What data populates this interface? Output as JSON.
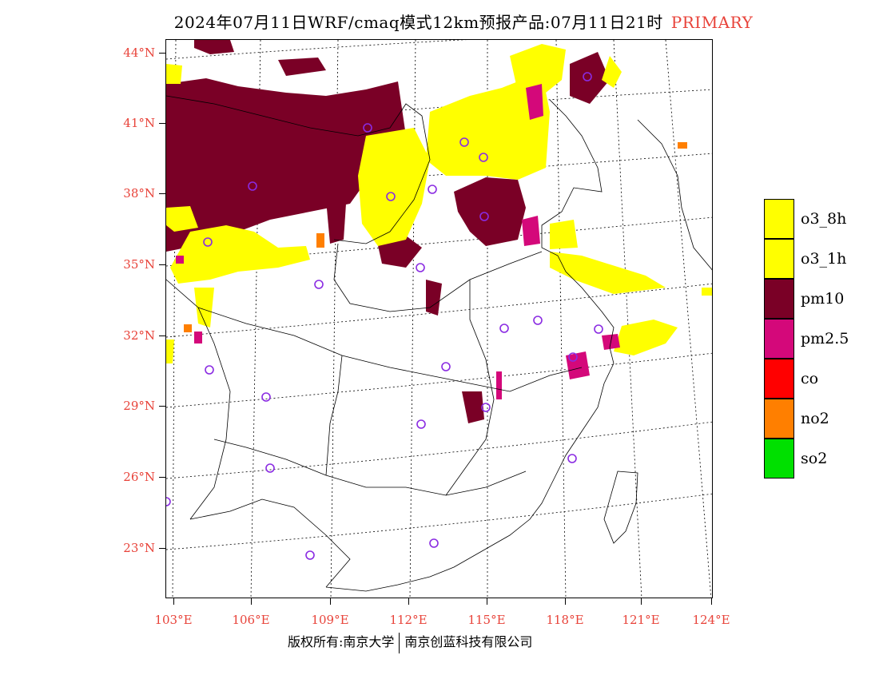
{
  "title": {
    "main": "2024年07月11日WRF/cmaq模式12km预报产品:07月11日21时",
    "tag": "PRIMARY"
  },
  "map": {
    "lat_ticks": [
      "44°N",
      "41°N",
      "38°N",
      "35°N",
      "32°N",
      "29°N",
      "26°N",
      "23°N"
    ],
    "lon_ticks": [
      "103°E",
      "106°E",
      "109°E",
      "112°E",
      "115°E",
      "118°E",
      "121°E",
      "124°E"
    ],
    "colors": {
      "o3_8h": "#ffff00",
      "o3_1h": "#ffff00",
      "pm10": "#7a0026",
      "pm25": "#d4087a",
      "co": "#ff0000",
      "no2": "#ff7f00",
      "so2": "#00e000",
      "station": "#8a2be2",
      "label": "#e8433a"
    }
  },
  "legend": [
    {
      "label": "o3_8h",
      "color": "#ffff00"
    },
    {
      "label": "o3_1h",
      "color": "#ffff00"
    },
    {
      "label": "pm10",
      "color": "#7a0026"
    },
    {
      "label": "pm2.5",
      "color": "#d4087a"
    },
    {
      "label": "co",
      "color": "#ff0000"
    },
    {
      "label": "no2",
      "color": "#ff7f00"
    },
    {
      "label": "so2",
      "color": "#00e000"
    }
  ],
  "footer": {
    "left": "版权所有:南京大学",
    "right": "南京创蓝科技有限公司"
  }
}
